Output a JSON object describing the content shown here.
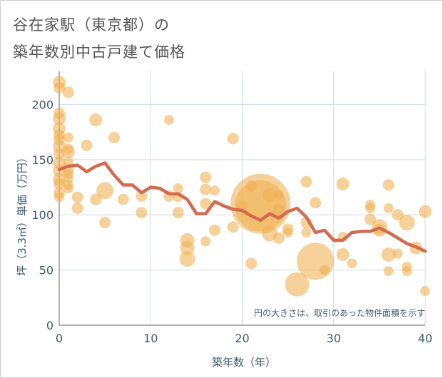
{
  "title_lines": [
    "谷在家駅（東京都）の",
    "築年数別中古戸建て価格"
  ],
  "chart_data": {
    "type": "scatter",
    "title": "谷在家駅（東京都）の築年数別中古戸建て価格",
    "xlabel": "築年数（年）",
    "ylabel": "坪（3.3㎡）単価（万円）",
    "xlim": [
      0,
      40
    ],
    "ylim": [
      0,
      230
    ],
    "x_ticks": [
      0,
      10,
      20,
      30,
      40
    ],
    "y_ticks": [
      0,
      50,
      100,
      150,
      200
    ],
    "grid": true,
    "annotation": "円の大きさは、取引のあった物件面積を示す",
    "colors": {
      "bubble": "#f0b355",
      "trend": "#d46a50",
      "grid": "#cfdde8",
      "axis_text": "#3d5a73"
    },
    "bubbles": [
      {
        "x": 0,
        "y": 220,
        "size": 9
      },
      {
        "x": 0,
        "y": 215,
        "size": 8
      },
      {
        "x": 1,
        "y": 211,
        "size": 8
      },
      {
        "x": 0,
        "y": 192,
        "size": 8
      },
      {
        "x": 0,
        "y": 187,
        "size": 9
      },
      {
        "x": 0,
        "y": 178,
        "size": 9
      },
      {
        "x": 0,
        "y": 172,
        "size": 8
      },
      {
        "x": 0,
        "y": 168,
        "size": 8
      },
      {
        "x": 1,
        "y": 170,
        "size": 7
      },
      {
        "x": 0,
        "y": 162,
        "size": 9
      },
      {
        "x": 1,
        "y": 160,
        "size": 7
      },
      {
        "x": 1,
        "y": 157,
        "size": 9
      },
      {
        "x": 0,
        "y": 155,
        "size": 8
      },
      {
        "x": 0,
        "y": 147,
        "size": 9
      },
      {
        "x": 1,
        "y": 148,
        "size": 7
      },
      {
        "x": 0,
        "y": 140,
        "size": 9
      },
      {
        "x": 1,
        "y": 141,
        "size": 8
      },
      {
        "x": 1,
        "y": 137,
        "size": 7
      },
      {
        "x": 0,
        "y": 132,
        "size": 9
      },
      {
        "x": 1,
        "y": 133,
        "size": 7
      },
      {
        "x": 0,
        "y": 128,
        "size": 8
      },
      {
        "x": 1,
        "y": 127,
        "size": 7
      },
      {
        "x": 1,
        "y": 124,
        "size": 7
      },
      {
        "x": 0,
        "y": 120,
        "size": 8
      },
      {
        "x": 0,
        "y": 116,
        "size": 7
      },
      {
        "x": 2,
        "y": 116,
        "size": 8
      },
      {
        "x": 2,
        "y": 106,
        "size": 8
      },
      {
        "x": 3,
        "y": 163,
        "size": 8
      },
      {
        "x": 4,
        "y": 186,
        "size": 9
      },
      {
        "x": 4,
        "y": 114,
        "size": 8
      },
      {
        "x": 5,
        "y": 122,
        "size": 12
      },
      {
        "x": 5,
        "y": 93,
        "size": 8
      },
      {
        "x": 6,
        "y": 170,
        "size": 8
      },
      {
        "x": 7,
        "y": 114,
        "size": 8
      },
      {
        "x": 9,
        "y": 117,
        "size": 8
      },
      {
        "x": 9,
        "y": 102,
        "size": 8
      },
      {
        "x": 12,
        "y": 186,
        "size": 7
      },
      {
        "x": 12,
        "y": 117,
        "size": 8
      },
      {
        "x": 13,
        "y": 124,
        "size": 7
      },
      {
        "x": 13,
        "y": 116,
        "size": 7
      },
      {
        "x": 13,
        "y": 102,
        "size": 8
      },
      {
        "x": 14,
        "y": 77,
        "size": 10
      },
      {
        "x": 14,
        "y": 70,
        "size": 10
      },
      {
        "x": 14,
        "y": 60,
        "size": 11
      },
      {
        "x": 16,
        "y": 134,
        "size": 8
      },
      {
        "x": 16,
        "y": 123,
        "size": 8
      },
      {
        "x": 16,
        "y": 110,
        "size": 8
      },
      {
        "x": 16,
        "y": 76,
        "size": 7
      },
      {
        "x": 17,
        "y": 122,
        "size": 7
      },
      {
        "x": 17,
        "y": 86,
        "size": 8
      },
      {
        "x": 19,
        "y": 169,
        "size": 8
      },
      {
        "x": 19,
        "y": 89,
        "size": 8
      },
      {
        "x": 20,
        "y": 108,
        "size": 8
      },
      {
        "x": 21,
        "y": 126,
        "size": 8
      },
      {
        "x": 21,
        "y": 56,
        "size": 8
      },
      {
        "x": 22,
        "y": 110,
        "size": 42
      },
      {
        "x": 22,
        "y": 108,
        "size": 36
      },
      {
        "x": 23,
        "y": 118,
        "size": 10
      },
      {
        "x": 23,
        "y": 83,
        "size": 11
      },
      {
        "x": 24,
        "y": 104,
        "size": 9
      },
      {
        "x": 24,
        "y": 118,
        "size": 7
      },
      {
        "x": 24,
        "y": 79,
        "size": 8
      },
      {
        "x": 25,
        "y": 87,
        "size": 8
      },
      {
        "x": 25,
        "y": 84,
        "size": 7
      },
      {
        "x": 26,
        "y": 37,
        "size": 17
      },
      {
        "x": 27,
        "y": 130,
        "size": 8
      },
      {
        "x": 27,
        "y": 93,
        "size": 8
      },
      {
        "x": 27,
        "y": 84,
        "size": 7
      },
      {
        "x": 28,
        "y": 58,
        "size": 26
      },
      {
        "x": 28,
        "y": 111,
        "size": 8
      },
      {
        "x": 29,
        "y": 50,
        "size": 7
      },
      {
        "x": 31,
        "y": 128,
        "size": 9
      },
      {
        "x": 31,
        "y": 80,
        "size": 7
      },
      {
        "x": 31,
        "y": 64,
        "size": 9
      },
      {
        "x": 32,
        "y": 56,
        "size": 7
      },
      {
        "x": 34,
        "y": 109,
        "size": 7
      },
      {
        "x": 34,
        "y": 106,
        "size": 7
      },
      {
        "x": 34,
        "y": 96,
        "size": 8
      },
      {
        "x": 35,
        "y": 89,
        "size": 11
      },
      {
        "x": 35,
        "y": 86,
        "size": 9
      },
      {
        "x": 36,
        "y": 127,
        "size": 8
      },
      {
        "x": 36,
        "y": 106,
        "size": 7
      },
      {
        "x": 36,
        "y": 64,
        "size": 10
      },
      {
        "x": 36,
        "y": 49,
        "size": 7
      },
      {
        "x": 37,
        "y": 100,
        "size": 8
      },
      {
        "x": 37,
        "y": 65,
        "size": 7
      },
      {
        "x": 38,
        "y": 93,
        "size": 11
      },
      {
        "x": 38,
        "y": 53,
        "size": 7
      },
      {
        "x": 38,
        "y": 49,
        "size": 7
      },
      {
        "x": 39,
        "y": 70,
        "size": 9
      },
      {
        "x": 40,
        "y": 103,
        "size": 9
      },
      {
        "x": 40,
        "y": 31,
        "size": 7
      }
    ],
    "trend": {
      "x": [
        0,
        1,
        2,
        3,
        4,
        5,
        6,
        7,
        8,
        9,
        10,
        11,
        12,
        13,
        14,
        15,
        16,
        17,
        18,
        19,
        20,
        21,
        22,
        23,
        24,
        25,
        26,
        27,
        28,
        29,
        30,
        31,
        32,
        33,
        34,
        35,
        36,
        37,
        38,
        39,
        40
      ],
      "y": [
        141,
        144,
        145,
        139,
        144,
        147,
        136,
        127,
        127,
        120,
        125,
        124,
        119,
        119,
        114,
        101,
        101,
        112,
        108,
        105,
        104,
        99,
        95,
        101,
        97,
        103,
        106,
        98,
        84,
        86,
        77,
        77,
        84,
        85,
        85,
        88,
        84,
        79,
        74,
        71,
        67
      ]
    }
  }
}
